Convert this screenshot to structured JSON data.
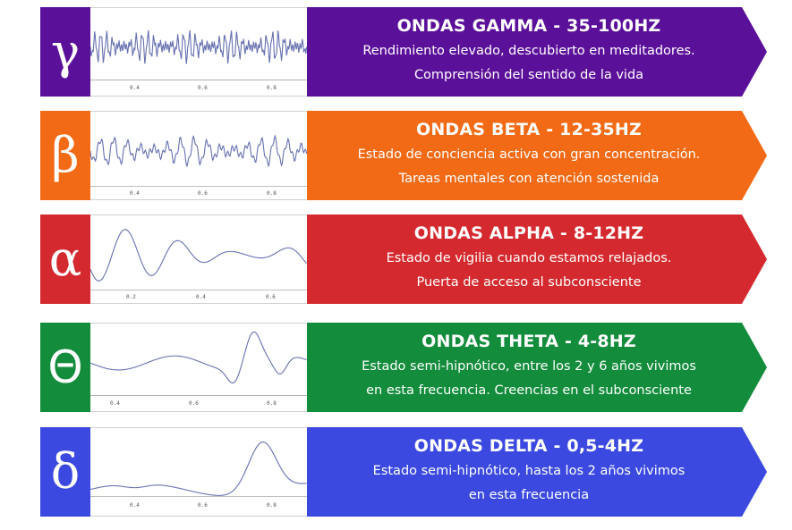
{
  "waves": [
    {
      "symbol": "γ",
      "color": "#5b109a",
      "title": "ONDAS GAMMA - 35-100HZ",
      "desc1": "Rendimiento elevado, descubierto en meditadores.",
      "desc2": "Comprensión del sentido de la vida",
      "ticks": [
        "0.4",
        "0.6",
        "0.8"
      ]
    },
    {
      "symbol": "β",
      "color": "#f26a16",
      "title": "ONDAS BETA - 12-35HZ",
      "desc1": "Estado de conciencia activa con gran concentración.",
      "desc2": "Tareas mentales con atención sostenida",
      "ticks": [
        "0.4",
        "0.6",
        "0.8"
      ]
    },
    {
      "symbol": "α",
      "color": "#d42a2f",
      "title": "ONDAS ALPHA - 8-12HZ",
      "desc1": "Estado de vigilia cuando estamos relajados.",
      "desc2": "Puerta de acceso al subconsciente",
      "ticks": [
        "0.2",
        "0.4",
        "0.6"
      ]
    },
    {
      "symbol": "Θ",
      "color": "#138c3c",
      "title": "ONDAS THETA - 4-8HZ",
      "desc1": "Estado semi-hipnótico, entre los 2 y 6 años vivimos",
      "desc2": "en esta frecuencia. Creencias en el subconsciente",
      "ticks": [
        "0.4",
        "0.6",
        "0.8"
      ]
    },
    {
      "symbol": "δ",
      "color": "#3b49e0",
      "title": "ONDAS DELTA - 0,5-4HZ",
      "desc1": "Estado semi-hipnótico, hasta los 2 años vivimos",
      "desc2": "en esta frecuencia",
      "ticks": [
        "0.4",
        "0.6",
        "0.8"
      ]
    }
  ]
}
